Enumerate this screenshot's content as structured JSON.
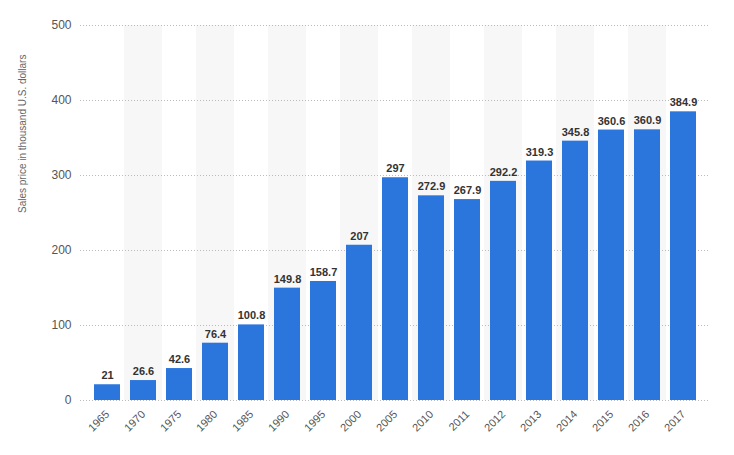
{
  "chart_data": {
    "type": "bar",
    "y_label": "Sales price in thousand U.S. dollars",
    "categories": [
      "1965",
      "1970",
      "1975",
      "1980",
      "1985",
      "1990",
      "1995",
      "2000",
      "2005",
      "2010",
      "2011",
      "2012",
      "2013",
      "2014",
      "2015",
      "2016",
      "2017"
    ],
    "values": [
      21,
      26.6,
      42.6,
      76.4,
      100.8,
      149.8,
      158.7,
      207,
      297,
      272.9,
      267.9,
      292.2,
      319.3,
      345.8,
      360.6,
      360.9,
      384.9
    ],
    "color": "#2a76dd",
    "ylim": [
      0,
      500
    ],
    "yticks": [
      0,
      100,
      200,
      300,
      400,
      500
    ],
    "grid": true,
    "data_labels": true
  }
}
